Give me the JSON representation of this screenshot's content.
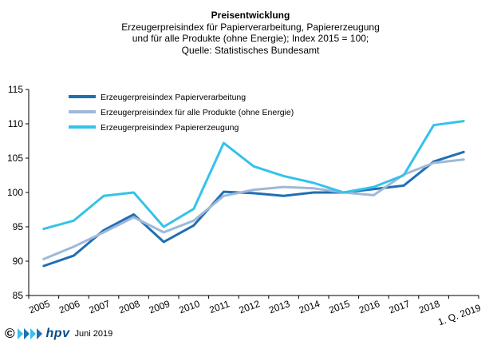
{
  "chart_data": {
    "type": "line",
    "title": "Preisentwicklung",
    "subtitle_lines": [
      "Erzeugerpreisindex  für Papierverarbeitung,  Papiererzeugung",
      "und für alle Produkte (ohne Energie); Index 2015 = 100;",
      "Quelle:  Statistisches Bundesamt"
    ],
    "categories": [
      "2005",
      "2006",
      "2007",
      "2008",
      "2009",
      "2010",
      "2011",
      "2012",
      "2013",
      "2014",
      "2015",
      "2016",
      "2017",
      "2018",
      "1. Q. 2019"
    ],
    "ylim": [
      85,
      115
    ],
    "yticks": [
      85,
      90,
      95,
      100,
      105,
      110,
      115
    ],
    "grid": false,
    "legend_position": "top-left",
    "series": [
      {
        "name": "Erzeugerpreisindex Papierverarbeitung",
        "color": "#1f6fb2",
        "values": [
          89.3,
          90.8,
          94.5,
          96.8,
          92.8,
          95.2,
          100.1,
          99.9,
          99.5,
          100.0,
          100.0,
          100.5,
          101.0,
          104.5,
          105.9
        ]
      },
      {
        "name": "Erzeugerpreisindex für alle Produkte (ohne Energie)",
        "color": "#9fb8d9",
        "values": [
          90.3,
          92.1,
          94.2,
          96.4,
          94.2,
          95.9,
          99.5,
          100.4,
          100.8,
          100.6,
          100.0,
          99.6,
          102.6,
          104.3,
          104.8
        ]
      },
      {
        "name": "Erzeugerpreisindex Papiererzeugung",
        "color": "#35c2ea",
        "values": [
          94.7,
          95.9,
          99.5,
          100.0,
          95.0,
          97.6,
          107.2,
          103.8,
          102.4,
          101.4,
          100.0,
          100.8,
          102.5,
          109.8,
          110.4
        ]
      }
    ]
  },
  "footer": {
    "copyright": "©",
    "logo_text": "hpv",
    "date": "Juni 2019"
  }
}
